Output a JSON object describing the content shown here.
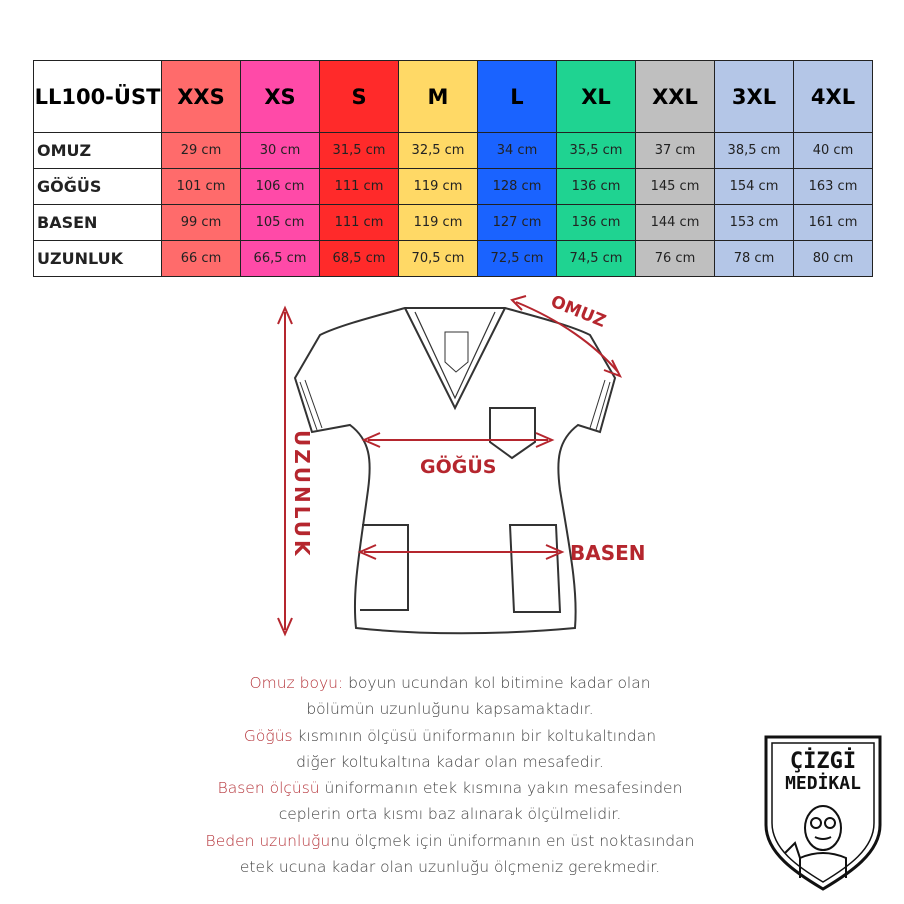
{
  "table": {
    "corner_label": "LL100-ÜST",
    "sizes": [
      {
        "label": "XXS",
        "color": "#ff6b6b"
      },
      {
        "label": "XS",
        "color": "#ff4aa8"
      },
      {
        "label": "S",
        "color": "#ff2a2a"
      },
      {
        "label": "M",
        "color": "#ffd966"
      },
      {
        "label": "L",
        "color": "#1a63ff"
      },
      {
        "label": "XL",
        "color": "#1fd391"
      },
      {
        "label": "XXL",
        "color": "#bfbfbf"
      },
      {
        "label": "3XL",
        "color": "#b4c6e7"
      },
      {
        "label": "4XL",
        "color": "#b4c6e7"
      }
    ],
    "rows": [
      {
        "label": "OMUZ",
        "values": [
          "29 cm",
          "30 cm",
          "31,5 cm",
          "32,5 cm",
          "34 cm",
          "35,5 cm",
          "37 cm",
          "38,5 cm",
          "40 cm"
        ]
      },
      {
        "label": "GÖĞÜS",
        "values": [
          "101 cm",
          "106 cm",
          "111 cm",
          "119 cm",
          "128 cm",
          "136 cm",
          "145 cm",
          "154 cm",
          "163 cm"
        ]
      },
      {
        "label": "BASEN",
        "values": [
          "99 cm",
          "105 cm",
          "111 cm",
          "119 cm",
          "127 cm",
          "136 cm",
          "144 cm",
          "153 cm",
          "161 cm"
        ]
      },
      {
        "label": "UZUNLUK",
        "values": [
          "66 cm",
          "66,5 cm",
          "68,5 cm",
          "70,5 cm",
          "72,5 cm",
          "74,5 cm",
          "76 cm",
          "78 cm",
          "80 cm"
        ]
      }
    ]
  },
  "diagram": {
    "omuz": "OMUZ",
    "gogus": "GÖĞÜS",
    "basen": "BASEN",
    "uzunluk": "UZUNLUK",
    "accent": "#b5262e"
  },
  "description": {
    "line1_hl": "Omuz boyu:",
    "line1": " boyun ucundan kol bitimine kadar olan",
    "line2": "bölümün uzunluğunu kapsamaktadır.",
    "line3_hl": "Göğüs",
    "line3": " kısmının ölçüsü üniformanın bir koltukaltından",
    "line4": "diğer koltukaltına kadar olan mesafedir.",
    "line5_hl": "Basen ölçüsü",
    "line5": " üniformanın etek kısmına yakın mesafesinden",
    "line6": "ceplerin orta kısmı baz alınarak ölçülmelidir.",
    "line7_hl": "Beden uzunluğu",
    "line7": "nu ölçmek için üniformanın en üst noktasından",
    "line8": "etek ucuna kadar olan uzunluğu ölçmeniz gerekmedir."
  },
  "logo": {
    "line1": "ÇİZGİ",
    "line2": "MEDİKAL"
  }
}
